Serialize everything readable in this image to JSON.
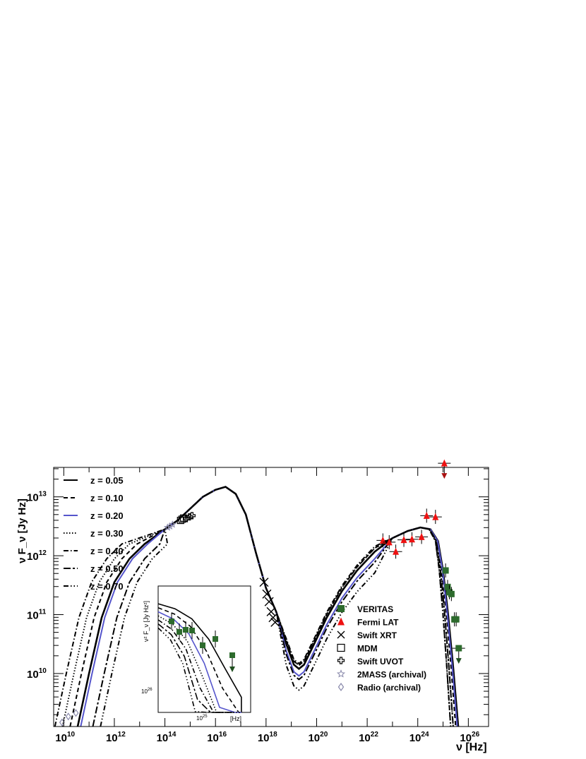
{
  "chart_data": {
    "type": "scatter",
    "title": "",
    "xlabel": "ν [Hz]",
    "ylabel": "ν F_ν [Jy Hz]",
    "xscale": "log",
    "yscale": "log",
    "xlim_log10": [
      9.6,
      26.8
    ],
    "ylim_log10": [
      9.1,
      13.5
    ],
    "x_ticks": [
      {
        "exp": "10",
        "log": 10
      },
      {
        "exp": "12",
        "log": 12
      },
      {
        "exp": "14",
        "log": 14
      },
      {
        "exp": "16",
        "log": 16
      },
      {
        "exp": "18",
        "log": 18
      },
      {
        "exp": "20",
        "log": 20
      },
      {
        "exp": "22",
        "log": 22
      },
      {
        "exp": "24",
        "log": 24
      },
      {
        "exp": "26",
        "log": 26
      }
    ],
    "y_ticks": [
      {
        "exp": "10",
        "log": 10
      },
      {
        "exp": "11",
        "log": 11
      },
      {
        "exp": "12",
        "log": 12
      },
      {
        "exp": "13",
        "log": 13
      }
    ],
    "model_legend": [
      {
        "label": "z = 0.05",
        "color": "#000000",
        "dash": ""
      },
      {
        "label": "z = 0.10",
        "color": "#000000",
        "dash": "6,4"
      },
      {
        "label": "z = 0.20",
        "color": "#5555cc",
        "dash": ""
      },
      {
        "label": "z = 0.30",
        "color": "#000000",
        "dash": "1.5,2.5"
      },
      {
        "label": "z = 0.40",
        "color": "#000000",
        "dash": "7,3,1.5,3"
      },
      {
        "label": "z = 0.50",
        "color": "#000000",
        "dash": "10,3,3,3"
      },
      {
        "label": "z = 0.70",
        "color": "#000000",
        "dash": "7,3,1.5,3,1.5,3,1.5,3"
      }
    ],
    "data_legend": [
      {
        "label": "VERITAS",
        "marker": "square-filled",
        "color": "#2d6b2d"
      },
      {
        "label": "Fermi LAT",
        "marker": "triangle-filled",
        "color": "#ee1111"
      },
      {
        "label": "Swift XRT",
        "marker": "cross",
        "color": "#000000"
      },
      {
        "label": "MDM",
        "marker": "square-open",
        "color": "#000000"
      },
      {
        "label": "Swift UVOT",
        "marker": "plus-open",
        "color": "#000000"
      },
      {
        "label": "2MASS (archival)",
        "marker": "star-open",
        "color": "#8888aa"
      },
      {
        "label": "Radio (archival)",
        "marker": "diamond-open",
        "color": "#8888aa"
      }
    ],
    "series": [
      {
        "name": "Radio (archival)",
        "points": [
          [
            9.93,
            9.17
          ],
          [
            10.18,
            9.27
          ],
          [
            10.48,
            9.33
          ]
        ]
      },
      {
        "name": "2MASS (archival)",
        "points": [
          [
            14.11,
            12.48
          ],
          [
            14.2,
            12.5
          ],
          [
            14.3,
            12.53
          ]
        ]
      },
      {
        "name": "MDM",
        "points": [
          [
            14.62,
            12.6
          ],
          [
            14.68,
            12.62
          ],
          [
            14.74,
            12.64
          ]
        ]
      },
      {
        "name": "Swift UVOT",
        "points": [
          [
            14.85,
            12.63
          ],
          [
            14.97,
            12.66
          ],
          [
            15.07,
            12.68
          ]
        ]
      },
      {
        "name": "Swift XRT",
        "points": [
          [
            17.92,
            11.55
          ],
          [
            18.03,
            11.35
          ],
          [
            18.12,
            11.22
          ],
          [
            18.2,
            11.05
          ],
          [
            18.28,
            10.95
          ],
          [
            18.36,
            10.87
          ]
        ]
      },
      {
        "name": "Fermi LAT",
        "points": [
          [
            22.62,
            12.26
          ],
          [
            22.87,
            12.23
          ],
          [
            23.13,
            12.07
          ],
          [
            23.45,
            12.27
          ],
          [
            23.77,
            12.28
          ],
          [
            24.15,
            12.32
          ],
          [
            24.35,
            12.68
          ],
          [
            24.7,
            12.66
          ]
        ],
        "upper_limit": [
          [
            25.05,
            13.57
          ]
        ]
      },
      {
        "name": "VERITAS",
        "points": [
          [
            25.1,
            11.75
          ],
          [
            25.18,
            11.47
          ],
          [
            25.25,
            11.38
          ],
          [
            25.33,
            11.35
          ],
          [
            25.45,
            10.92
          ],
          [
            25.52,
            10.92
          ]
        ],
        "upper_limit": [
          [
            25.62,
            10.43
          ]
        ]
      }
    ],
    "inset": {
      "ylabel": "ν² F_ν [Jy Hz²]",
      "ytick": {
        "base": "10",
        "exp": "26"
      },
      "xtick": {
        "base": "10",
        "exp": "25"
      },
      "xunit": "[Hz]"
    }
  }
}
